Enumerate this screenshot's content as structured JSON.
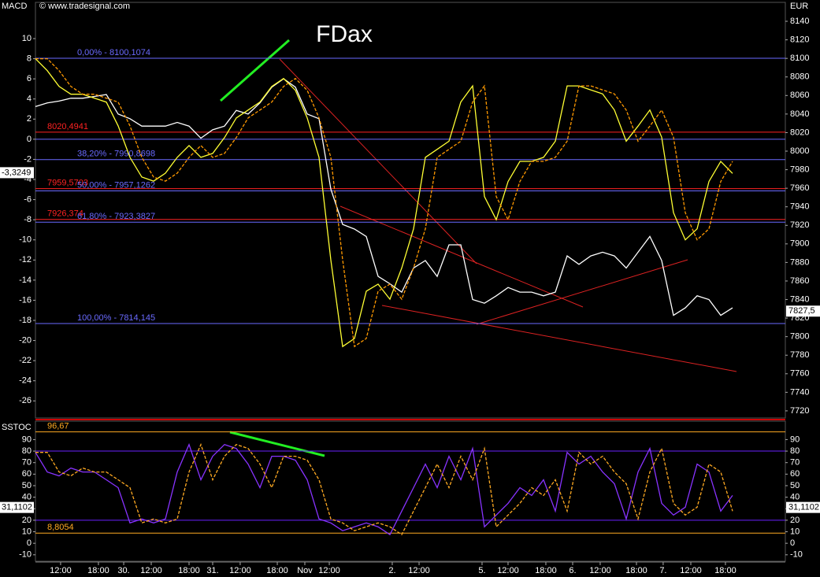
{
  "chart_data": [
    {
      "type": "line",
      "title": "FDax",
      "source": "© www.tradesignal.com",
      "ylabel": "MACD",
      "y2label": "EUR",
      "x": [
        0,
        1,
        2,
        3,
        4,
        5,
        6,
        7,
        8,
        9,
        10,
        11,
        12,
        13,
        14,
        15,
        16,
        17,
        18,
        19,
        20,
        21,
        22,
        23,
        24,
        25,
        26,
        27,
        28,
        29,
        30,
        31,
        32,
        33,
        34,
        35,
        36,
        37,
        38,
        39,
        40,
        41,
        42,
        43,
        44,
        45,
        46,
        47,
        48,
        49,
        50,
        51,
        52,
        53,
        54,
        55,
        56,
        57,
        58,
        59
      ],
      "xlim": [
        0,
        63.47
      ],
      "ylim": [
        -27.7,
        13.6
      ],
      "yticks": [
        10,
        8,
        6,
        4,
        2,
        0,
        -2,
        -4,
        -6,
        -8,
        -10,
        -12,
        -14,
        -16,
        -18,
        -20,
        -22,
        -24,
        -26
      ],
      "y2lim": [
        7712.3,
        8160.4
      ],
      "y2ticks": [
        8140,
        8120,
        8100,
        8080,
        8060,
        8040,
        8020,
        8000,
        7980,
        7960,
        7940,
        7920,
        7900,
        7880,
        7860,
        7840,
        7820,
        7800,
        7780,
        7760,
        7740,
        7720
      ],
      "series": [
        {
          "color": "#ffffff",
          "axis": "y2",
          "values": [
            8048,
            8052,
            8054,
            8057,
            8057,
            8059,
            8061,
            8040,
            8035,
            8027,
            8027,
            8027,
            8031,
            8027,
            8014,
            8023,
            8027,
            8044,
            8040,
            8052,
            8069,
            8078,
            8069,
            8040,
            8035,
            7959,
            7921,
            7916,
            7908,
            7865,
            7857,
            7848,
            7874,
            7882,
            7865,
            7899,
            7899,
            7840,
            7836,
            7844,
            7853,
            7848,
            7848,
            7844,
            7848,
            7887,
            7878,
            7887,
            7891,
            7887,
            7874,
            7891,
            7908,
            7882,
            7823,
            7831,
            7844,
            7840,
            7823,
            7831
          ]
        },
        {
          "color": "#ffff33",
          "values": [
            8.0,
            6.82,
            5.25,
            4.47,
            4.47,
            4.08,
            3.69,
            1.33,
            -1.8,
            -3.76,
            -4.16,
            -3.37,
            -1.8,
            -0.63,
            -1.8,
            -1.41,
            0.16,
            2.12,
            2.9,
            3.69,
            5.25,
            6.04,
            4.86,
            2.12,
            -1.8,
            -12.0,
            -20.6,
            -19.8,
            -15.1,
            -14.4,
            -15.9,
            -12.8,
            -8.9,
            -1.8,
            -1.0,
            -0.2,
            3.7,
            5.3,
            -5.7,
            -8.0,
            -4.2,
            -2.2,
            -2.2,
            -1.8,
            -0.2,
            5.3,
            5.3,
            4.9,
            4.5,
            2.9,
            -0.2,
            1.3,
            2.9,
            0.2,
            -7.3,
            -10.0,
            -8.9,
            -4.2,
            -2.2,
            -3.4
          ]
        },
        {
          "color": "#ff9900",
          "style": "dashed",
          "values": [
            8.0,
            8.0,
            6.82,
            5.25,
            4.47,
            4.47,
            4.08,
            3.69,
            1.33,
            -1.8,
            -3.76,
            -4.16,
            -3.37,
            -1.8,
            -0.63,
            -1.8,
            -1.41,
            0.16,
            2.12,
            2.9,
            3.69,
            5.25,
            6.04,
            4.86,
            2.12,
            -1.8,
            -12.0,
            -20.6,
            -19.8,
            -15.1,
            -14.4,
            -15.9,
            -12.8,
            -8.9,
            -1.8,
            -1.0,
            -0.2,
            3.7,
            5.3,
            -5.7,
            -8.0,
            -4.2,
            -2.2,
            -2.2,
            -1.8,
            -0.2,
            5.3,
            5.3,
            4.9,
            4.5,
            2.9,
            -0.2,
            1.3,
            2.9,
            0.2,
            -7.3,
            -10.0,
            -8.9,
            -4.2,
            -2.2
          ]
        }
      ],
      "levels": [
        {
          "value": 8100.1074,
          "label": "0,00% - 8100,1074",
          "color": "#6a6aff",
          "axis": "y2"
        },
        {
          "value": 8020.4941,
          "label": "8020,4941",
          "color": "#ff2222",
          "axis": "y2"
        },
        {
          "value": 7990.8698,
          "label": "38,20% - 7990,8698",
          "color": "#6a6aff",
          "axis": "y2"
        },
        {
          "value": 7959.5703,
          "label": "7959,5703",
          "color": "#ff2222",
          "axis": "y2"
        },
        {
          "value": 7957.1262,
          "label": "50,00% - 7957,1262",
          "color": "#6a6aff",
          "axis": "y2"
        },
        {
          "value": 7926.374,
          "label": "7926,374",
          "color": "#ff2222",
          "axis": "y2"
        },
        {
          "value": 7923.3827,
          "label": "61,80% - 7923,3827",
          "color": "#6a6aff",
          "axis": "y2"
        },
        {
          "value": 7814.145,
          "label": "100,00% - 7814,145",
          "color": "#6a6aff",
          "axis": "y2"
        }
      ],
      "guides": [
        0
      ],
      "markers": [
        {
          "value": -3.3249,
          "label": "-3,3249",
          "axis": "y",
          "side": "left"
        },
        {
          "value": 7827.5,
          "label": "7827,5",
          "axis": "y2",
          "side": "right"
        }
      ]
    },
    {
      "type": "line",
      "ylabel": "SSTOC",
      "x": [
        0,
        1,
        2,
        3,
        4,
        5,
        6,
        7,
        8,
        9,
        10,
        11,
        12,
        13,
        14,
        15,
        16,
        17,
        18,
        19,
        20,
        21,
        22,
        23,
        24,
        25,
        26,
        27,
        28,
        29,
        30,
        31,
        32,
        33,
        34,
        35,
        36,
        37,
        38,
        39,
        40,
        41,
        42,
        43,
        44,
        45,
        46,
        47,
        48,
        49,
        50,
        51,
        52,
        53,
        54,
        55,
        56,
        57,
        58,
        59
      ],
      "xlim": [
        0,
        63.47
      ],
      "xticks": [
        {
          "value": 2.13,
          "label": "12:00"
        },
        {
          "value": 5.33,
          "label": "18:00"
        },
        {
          "value": 7.47,
          "label": "30."
        },
        {
          "value": 9.8,
          "label": "12:00"
        },
        {
          "value": 13,
          "label": "18:00"
        },
        {
          "value": 15,
          "label": "31."
        },
        {
          "value": 17.33,
          "label": "12:00"
        },
        {
          "value": 20.47,
          "label": "18:00"
        },
        {
          "value": 22.8,
          "label": "Nov"
        },
        {
          "value": 24.87,
          "label": "12:00"
        },
        {
          "value": 30.2,
          "label": "2."
        },
        {
          "value": 32.47,
          "label": "12:00"
        },
        {
          "value": 37.8,
          "label": "5."
        },
        {
          "value": 40,
          "label": "12:00"
        },
        {
          "value": 43.2,
          "label": "18:00"
        },
        {
          "value": 45.47,
          "label": "6."
        },
        {
          "value": 47.8,
          "label": "12:00"
        },
        {
          "value": 50.87,
          "label": "18:00"
        },
        {
          "value": 53.13,
          "label": "7."
        },
        {
          "value": 55.47,
          "label": "12:00"
        },
        {
          "value": 58.4,
          "label": "18:00"
        }
      ],
      "ylim": [
        -15.6,
        106
      ],
      "yticks": [
        90,
        80,
        70,
        60,
        50,
        40,
        30,
        20,
        10,
        0,
        -10
      ],
      "series": [
        {
          "color": "#8833ff",
          "values": [
            78.9,
            61.9,
            58.5,
            65.3,
            61.9,
            61.9,
            55.1,
            48.3,
            17.7,
            21.1,
            17.7,
            21.1,
            61.9,
            85.7,
            55.1,
            75.5,
            85.7,
            82.3,
            68.7,
            48.3,
            75.5,
            75.5,
            72.1,
            55.1,
            21.1,
            17.7,
            10.9,
            14.3,
            17.7,
            14.3,
            7.5,
            27.9,
            48.3,
            68.7,
            48.3,
            75.5,
            55.1,
            82.3,
            14.3,
            24.5,
            34.7,
            48.3,
            41.5,
            55.1,
            27.9,
            78.9,
            68.7,
            75.5,
            61.9,
            51.7,
            21.1,
            61.9,
            82.3,
            34.7,
            24.5,
            31.3,
            68.7,
            61.9,
            27.9,
            41.5
          ]
        },
        {
          "color": "#ffaa22",
          "style": "dashed",
          "values": [
            78.9,
            78.9,
            61.9,
            58.5,
            65.3,
            61.9,
            61.9,
            55.1,
            48.3,
            17.7,
            21.1,
            17.7,
            21.1,
            61.9,
            85.7,
            55.1,
            75.5,
            85.7,
            82.3,
            68.7,
            48.3,
            75.5,
            75.5,
            72.1,
            55.1,
            21.1,
            17.7,
            10.9,
            14.3,
            17.7,
            14.3,
            7.5,
            27.9,
            48.3,
            68.7,
            48.3,
            75.5,
            55.1,
            82.3,
            14.3,
            24.5,
            34.7,
            48.3,
            41.5,
            55.1,
            27.9,
            78.9,
            68.7,
            75.5,
            61.9,
            51.7,
            21.1,
            61.9,
            82.3,
            34.7,
            24.5,
            31.3,
            68.7,
            61.9,
            27.9
          ]
        }
      ],
      "levels": [
        {
          "value": 96.67,
          "label": "96,67",
          "color": "#ffaa22",
          "axis": "y"
        },
        {
          "value": 8.8054,
          "label": "8,8054",
          "color": "#ffaa22",
          "axis": "y"
        }
      ],
      "guides": [
        80,
        20
      ],
      "markers": [
        {
          "value": 31.1102,
          "label": "31,1102",
          "axis": "y",
          "side": "left"
        },
        {
          "value": 31.1102,
          "label": "31,1102",
          "axis": "y",
          "side": "right"
        }
      ]
    }
  ]
}
